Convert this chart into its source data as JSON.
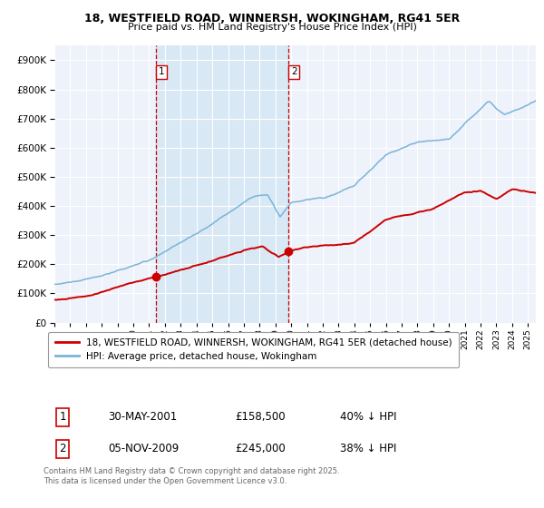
{
  "title_line1": "18, WESTFIELD ROAD, WINNERSH, WOKINGHAM, RG41 5ER",
  "title_line2": "Price paid vs. HM Land Registry's House Price Index (HPI)",
  "ylim": [
    0,
    950000
  ],
  "yticks": [
    0,
    100000,
    200000,
    300000,
    400000,
    500000,
    600000,
    700000,
    800000,
    900000
  ],
  "ytick_labels": [
    "£0",
    "£100K",
    "£200K",
    "£300K",
    "£400K",
    "£500K",
    "£600K",
    "£700K",
    "£800K",
    "£900K"
  ],
  "hpi_color": "#7ab4d8",
  "price_color": "#cc0000",
  "bg_color": "#ffffff",
  "plot_bg_color": "#eef2fa",
  "grid_color": "#ffffff",
  "shade_color": "#d8e8f5",
  "sale1_year": 2001.42,
  "sale1_price": 158500,
  "sale2_year": 2009.84,
  "sale2_price": 245000,
  "legend_line1": "18, WESTFIELD ROAD, WINNERSH, WOKINGHAM, RG41 5ER (detached house)",
  "legend_line2": "HPI: Average price, detached house, Wokingham",
  "footer": "Contains HM Land Registry data © Crown copyright and database right 2025.\nThis data is licensed under the Open Government Licence v3.0.",
  "table_row1": [
    "1",
    "30-MAY-2001",
    "£158,500",
    "40% ↓ HPI"
  ],
  "table_row2": [
    "2",
    "05-NOV-2009",
    "£245,000",
    "38% ↓ HPI"
  ],
  "xstart": 1995,
  "xend": 2025.5
}
